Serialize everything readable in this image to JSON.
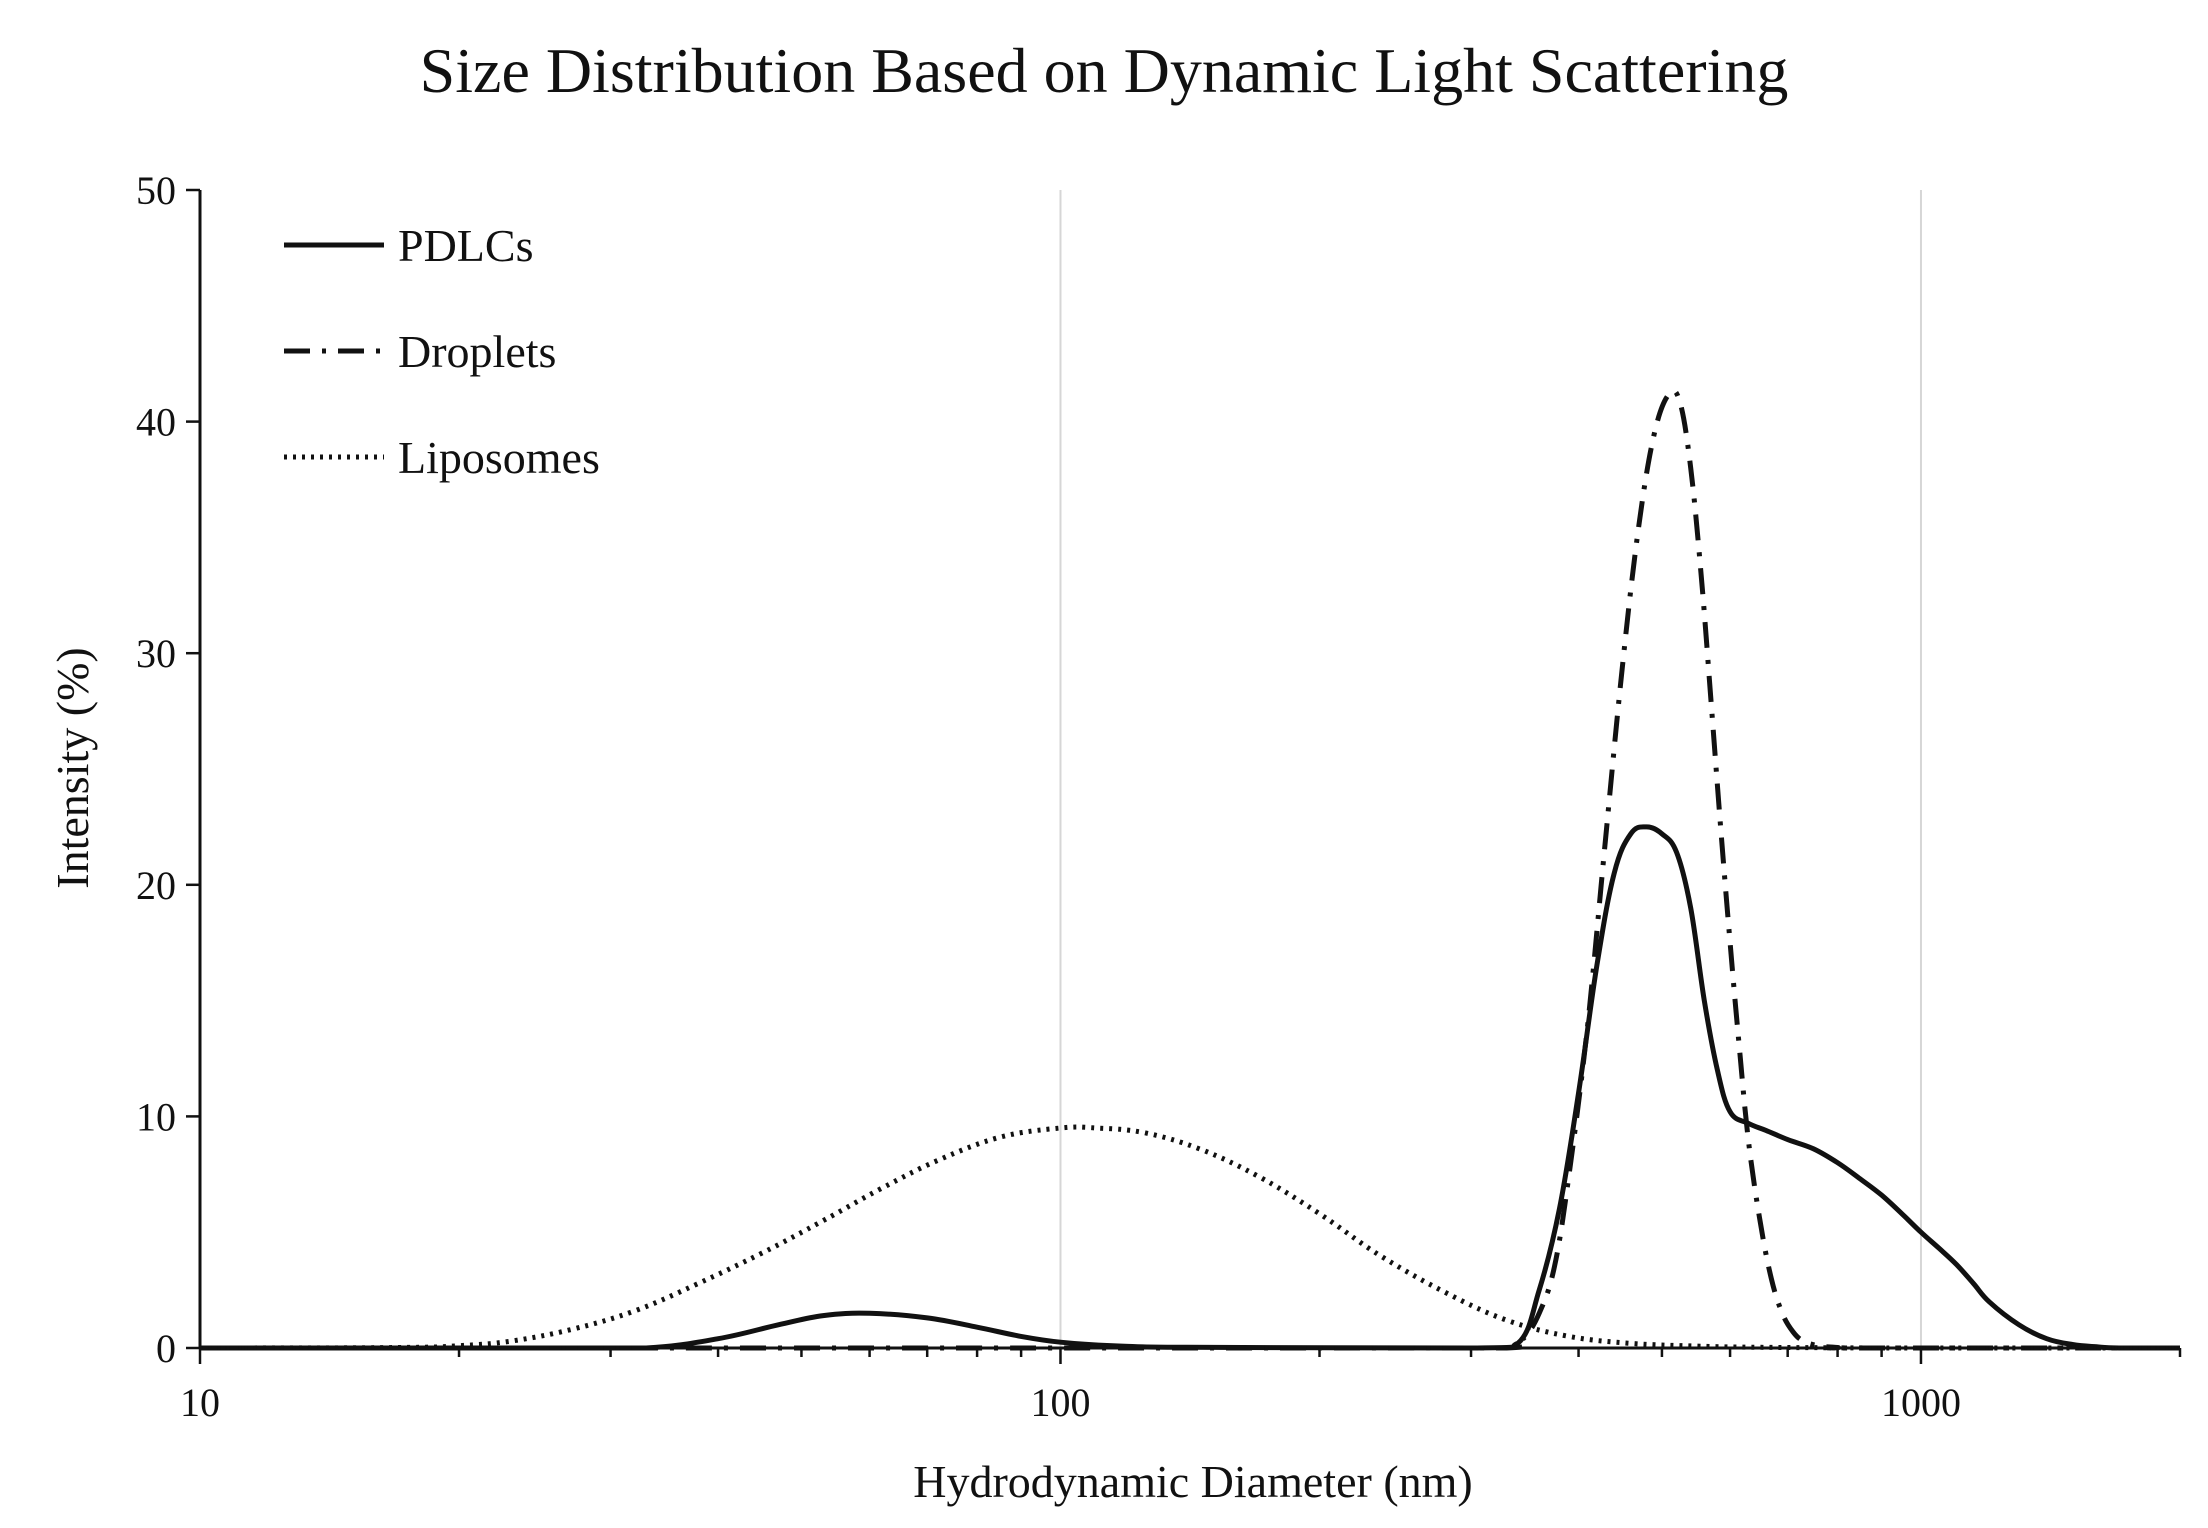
{
  "chart_data": {
    "type": "line",
    "title": "Size Distribution Based on Dynamic Light Scattering",
    "xlabel": "Hydrodynamic Diameter (nm)",
    "ylabel": "Intensity (%)",
    "xscale": "log",
    "xlim": [
      10,
      2000
    ],
    "ylim": [
      0,
      50
    ],
    "xticks": [
      10,
      100,
      1000
    ],
    "xtick_labels": [
      "10",
      "100",
      "1000"
    ],
    "yticks": [
      0,
      10,
      20,
      30,
      40,
      50
    ],
    "ytick_labels": [
      "0",
      "10",
      "20",
      "30",
      "40",
      "50"
    ],
    "grid": "vertical major",
    "legend_position": "top-left",
    "series": [
      {
        "name": "PDLCs",
        "style": "solid",
        "x": [
          10,
          25,
          33,
          40,
          47,
          53,
          60,
          70,
          80,
          90,
          100,
          115,
          140,
          300,
          340,
          360,
          380,
          400,
          420,
          440,
          460,
          480,
          500,
          520,
          540,
          560,
          580,
          600,
          630,
          660,
          700,
          750,
          800,
          850,
          900,
          950,
          1000,
          1050,
          1100,
          1150,
          1200,
          1300,
          1400,
          1500,
          1600,
          1700,
          2000
        ],
        "y": [
          0,
          0,
          0,
          0.4,
          1.0,
          1.4,
          1.5,
          1.3,
          0.9,
          0.5,
          0.25,
          0.1,
          0.03,
          0,
          0.2,
          2.5,
          6.0,
          11.0,
          16.5,
          20.5,
          22.2,
          22.5,
          22.2,
          21.4,
          19.0,
          15.0,
          12.0,
          10.2,
          9.7,
          9.4,
          9.0,
          8.6,
          8.0,
          7.3,
          6.6,
          5.8,
          5.0,
          4.3,
          3.6,
          2.8,
          2.0,
          1.0,
          0.4,
          0.15,
          0.05,
          0,
          0
        ],
        "legend_label": "PDLCs"
      },
      {
        "name": "Droplets",
        "style": "dashdot",
        "x": [
          10,
          200,
          330,
          345,
          360,
          375,
          390,
          410,
          430,
          450,
          470,
          490,
          510,
          525,
          540,
          555,
          570,
          585,
          600,
          615,
          630,
          650,
          670,
          690,
          710,
          730,
          760,
          800,
          850,
          2000
        ],
        "y": [
          0,
          0,
          0,
          0.4,
          1.5,
          3.5,
          7.5,
          14.0,
          22.0,
          29.5,
          35.5,
          39.5,
          41.2,
          40.8,
          38.0,
          33.5,
          28.0,
          22.5,
          17.5,
          13.0,
          9.0,
          5.5,
          3.0,
          1.5,
          0.7,
          0.3,
          0.1,
          0.02,
          0,
          0
        ],
        "legend_label": "Droplets"
      },
      {
        "name": "Liposomes",
        "style": "dotted",
        "x": [
          10,
          17,
          20,
          23,
          27,
          32,
          38,
          45,
          53,
          62,
          72,
          85,
          100,
          110,
          125,
          145,
          170,
          200,
          235,
          280,
          330,
          390,
          460,
          550,
          650,
          800,
          1000,
          2000
        ],
        "y": [
          0,
          0.02,
          0.1,
          0.3,
          0.8,
          1.6,
          2.8,
          4.1,
          5.5,
          6.9,
          8.1,
          9.1,
          9.5,
          9.5,
          9.3,
          8.6,
          7.4,
          5.8,
          4.0,
          2.4,
          1.2,
          0.5,
          0.2,
          0.08,
          0.03,
          0.01,
          0,
          0
        ],
        "legend_label": "Liposomes"
      }
    ]
  }
}
